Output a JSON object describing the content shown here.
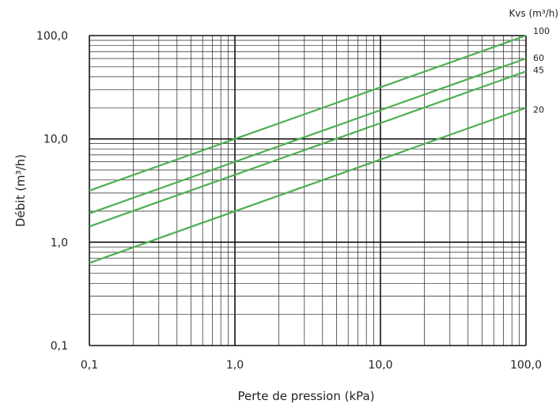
{
  "chart_data": {
    "type": "line",
    "xscale": "log",
    "yscale": "log",
    "xlim": [
      0.1,
      100
    ],
    "ylim": [
      0.1,
      100
    ],
    "grid": true,
    "xlabel": "Perte de pression (kPa)",
    "ylabel": "Débit (m³/h)",
    "x_ticks": [
      0.1,
      1,
      10,
      100
    ],
    "x_tick_labels": [
      "0,1",
      "1,0",
      "10,0",
      "100,0"
    ],
    "y_ticks": [
      0.1,
      1,
      10,
      100
    ],
    "y_tick_labels": [
      "0,1",
      "1,0",
      "10,0",
      "100,0"
    ],
    "series_label_title": "Kvs (m³/h)",
    "line_color": "#4caf50",
    "series": [
      {
        "name": "100",
        "x": [
          0.1,
          100
        ],
        "y": [
          3.16,
          100
        ]
      },
      {
        "name": "60",
        "x": [
          0.1,
          100
        ],
        "y": [
          1.9,
          60
        ]
      },
      {
        "name": "45",
        "x": [
          0.1,
          100
        ],
        "y": [
          1.42,
          45
        ]
      },
      {
        "name": "20",
        "x": [
          0.1,
          100
        ],
        "y": [
          0.63,
          20
        ]
      }
    ]
  }
}
